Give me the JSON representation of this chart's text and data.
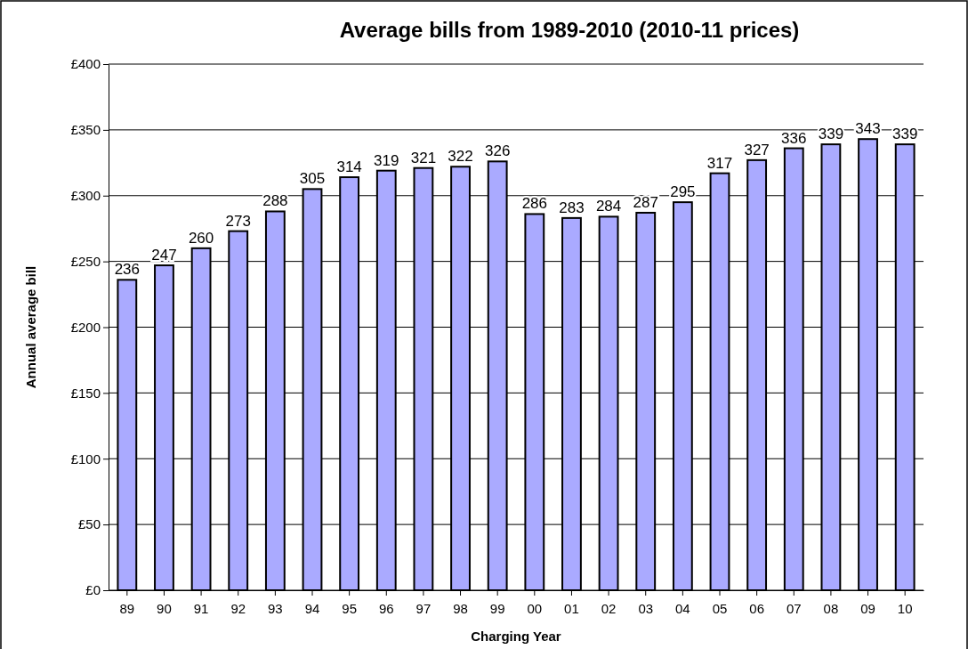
{
  "chart_data": {
    "type": "bar",
    "title": "Average bills from 1989-2010 (2010-11 prices)",
    "xlabel": "Charging Year",
    "ylabel": "Annual average bill",
    "categories": [
      "89",
      "90",
      "91",
      "92",
      "93",
      "94",
      "95",
      "96",
      "97",
      "98",
      "99",
      "00",
      "01",
      "02",
      "03",
      "04",
      "05",
      "06",
      "07",
      "08",
      "09",
      "10"
    ],
    "values": [
      236,
      247,
      260,
      273,
      288,
      305,
      314,
      319,
      321,
      322,
      326,
      286,
      283,
      284,
      287,
      295,
      317,
      327,
      336,
      339,
      343,
      339
    ],
    "color": "#aaaaff",
    "data_labels": true,
    "grid": "y",
    "ylim": [
      0,
      400
    ],
    "yticks": [
      {
        "value": 0,
        "label": "£0"
      },
      {
        "value": 50,
        "label": "£50"
      },
      {
        "value": 100,
        "label": "£100"
      },
      {
        "value": 150,
        "label": "£150"
      },
      {
        "value": 200,
        "label": "£200"
      },
      {
        "value": 250,
        "label": "£250"
      },
      {
        "value": 300,
        "label": "£300"
      },
      {
        "value": 350,
        "label": "£350"
      },
      {
        "value": 400,
        "label": "£400"
      }
    ]
  }
}
